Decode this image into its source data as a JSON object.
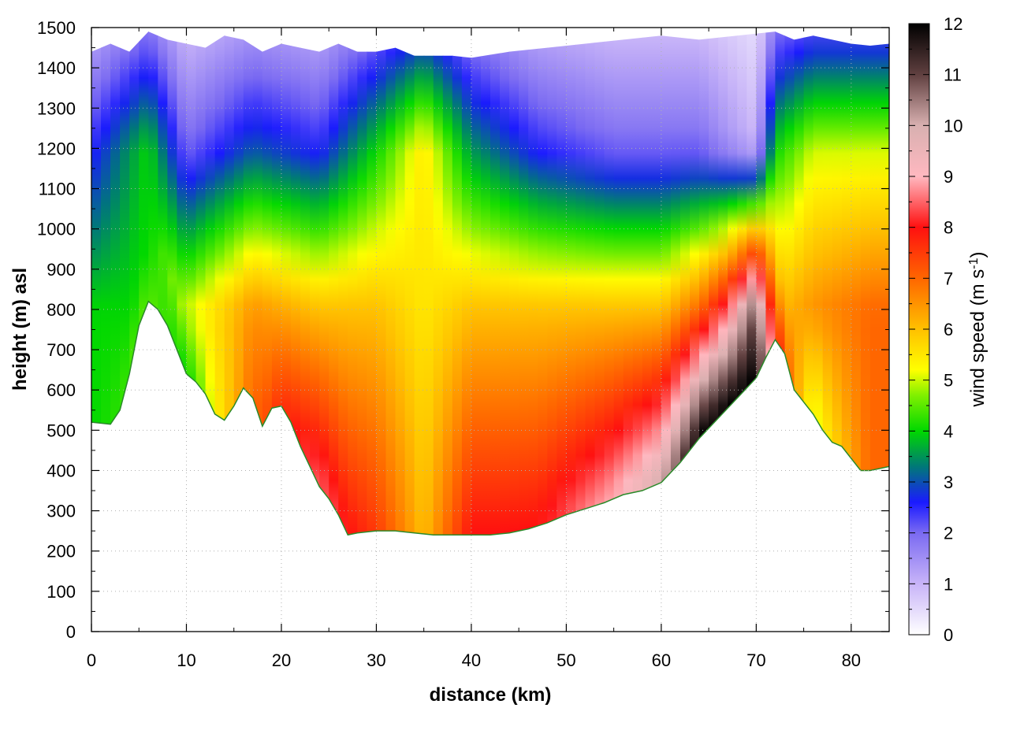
{
  "chart_data": {
    "type": "heatmap",
    "title": "",
    "xlabel": "distance (km)",
    "ylabel": "height (m) asl",
    "xlim": [
      0,
      84
    ],
    "ylim": [
      0,
      1500
    ],
    "x_ticks": [
      0,
      10,
      20,
      30,
      40,
      50,
      60,
      70,
      80
    ],
    "y_ticks": [
      0,
      100,
      200,
      300,
      400,
      500,
      600,
      700,
      800,
      900,
      1000,
      1100,
      1200,
      1300,
      1400,
      1500
    ],
    "grid": true,
    "colorbar": {
      "label_main": "wind speed (m s",
      "label_sup": "-1",
      "label_close": ")",
      "range": [
        0,
        12
      ],
      "ticks": [
        0,
        1,
        2,
        3,
        4,
        5,
        6,
        7,
        8,
        9,
        10,
        11,
        12
      ],
      "palette": [
        {
          "v": 0,
          "color": "#ffffff"
        },
        {
          "v": 1,
          "color": "#c8b4f8"
        },
        {
          "v": 2,
          "color": "#7a6af2"
        },
        {
          "v": 2.6,
          "color": "#1a1aff"
        },
        {
          "v": 3.3,
          "color": "#007878"
        },
        {
          "v": 4,
          "color": "#00d800"
        },
        {
          "v": 4.7,
          "color": "#80f000"
        },
        {
          "v": 5.2,
          "color": "#ffff00"
        },
        {
          "v": 6,
          "color": "#ffc000"
        },
        {
          "v": 7,
          "color": "#ff6600"
        },
        {
          "v": 8,
          "color": "#ff1010"
        },
        {
          "v": 9,
          "color": "#ffb8c0"
        },
        {
          "v": 10,
          "color": "#d8b0b0"
        },
        {
          "v": 11,
          "color": "#604040"
        },
        {
          "v": 12,
          "color": "#000000"
        }
      ]
    },
    "terrain_profile": {
      "x": [
        0,
        2,
        3,
        4,
        5,
        6,
        7,
        8,
        9,
        10,
        11,
        12,
        13,
        14,
        15,
        16,
        17,
        18,
        19,
        20,
        21,
        22,
        23,
        24,
        25,
        26,
        27,
        28,
        30,
        32,
        34,
        36,
        38,
        40,
        42,
        44,
        46,
        48,
        50,
        52,
        54,
        56,
        58,
        60,
        62,
        64,
        66,
        68,
        70,
        71,
        72,
        73,
        74,
        75,
        76,
        77,
        78,
        79,
        80,
        81,
        82,
        84
      ],
      "height": [
        520,
        515,
        550,
        640,
        760,
        820,
        800,
        760,
        700,
        640,
        620,
        590,
        540,
        525,
        560,
        605,
        580,
        510,
        555,
        560,
        520,
        460,
        410,
        360,
        330,
        290,
        240,
        245,
        250,
        250,
        245,
        240,
        240,
        240,
        240,
        245,
        255,
        270,
        290,
        305,
        320,
        340,
        350,
        370,
        420,
        480,
        530,
        580,
        630,
        680,
        725,
        690,
        600,
        570,
        540,
        500,
        470,
        460,
        430,
        400,
        400,
        410
      ]
    },
    "model_top": {
      "x": [
        0,
        2,
        4,
        6,
        8,
        10,
        12,
        14,
        16,
        18,
        20,
        22,
        24,
        26,
        28,
        30,
        32,
        34,
        36,
        38,
        40,
        44,
        48,
        52,
        56,
        60,
        64,
        68,
        72,
        74,
        76,
        78,
        80,
        82,
        84
      ],
      "height": [
        1440,
        1460,
        1440,
        1490,
        1470,
        1460,
        1450,
        1480,
        1470,
        1440,
        1460,
        1450,
        1440,
        1460,
        1440,
        1440,
        1450,
        1430,
        1430,
        1430,
        1425,
        1440,
        1450,
        1460,
        1470,
        1480,
        1470,
        1480,
        1490,
        1470,
        1480,
        1470,
        1460,
        1455,
        1460
      ]
    },
    "wind_speed_samples": {
      "x": [
        0,
        6,
        10,
        17,
        24,
        30,
        35,
        40,
        47,
        55,
        60,
        64,
        67,
        70,
        72,
        76,
        82
      ],
      "near_surface": [
        4,
        4.5,
        4,
        7,
        8.5,
        7.5,
        6,
        8,
        8,
        9,
        10,
        12,
        12,
        12,
        8,
        5,
        7
      ],
      "mid_level_800m": [
        4,
        4,
        5,
        6.5,
        6,
        6,
        5.5,
        6,
        6,
        6,
        6,
        7,
        8.5,
        11,
        6,
        6.5,
        7
      ],
      "upper_1200m": [
        2.5,
        4,
        2,
        3,
        2.5,
        4,
        5.5,
        3.5,
        2.5,
        2,
        2,
        2,
        1.5,
        1,
        4,
        5,
        5
      ]
    }
  }
}
